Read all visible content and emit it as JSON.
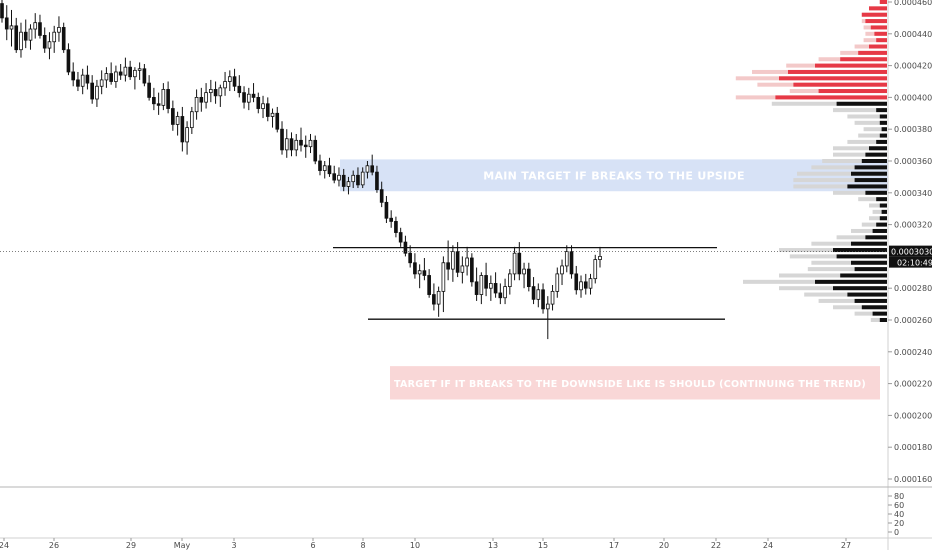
{
  "chart_data": {
    "type": "candlestick",
    "title": "",
    "price_axis": {
      "ticks": [
        "0.0004600",
        "0.0004400",
        "0.0004200",
        "0.0004000",
        "0.0003800",
        "0.0003600",
        "0.0003400",
        "0.0003200",
        "0.0002800",
        "0.0002600",
        "0.0002400",
        "0.0002200",
        "0.0002000",
        "0.0001800",
        "0.0001600"
      ],
      "range": [
        0.000152,
        0.000462
      ],
      "current_price": "0.0003030",
      "countdown": "02:10:49"
    },
    "time_axis": {
      "labels": [
        "24",
        "26",
        "29",
        "May",
        "3",
        "6",
        "8",
        "10",
        "13",
        "15",
        "17",
        "20",
        "22",
        "24",
        "27"
      ]
    },
    "indicator_axis": {
      "ticks": [
        "80",
        "60",
        "40",
        "20",
        "0"
      ]
    },
    "zones": [
      {
        "label": "MAIN TARGET IF BREAKS TO THE UPSIDE",
        "from_price": 0.000341,
        "to_price": 0.000361,
        "color": "#c9d8f3"
      },
      {
        "label": "TARGET IF IT BREAKS TO THE DOWNSIDE LIKE IS SHOULD (CONTINUING THE TREND)",
        "from_price": 0.00021,
        "to_price": 0.000231,
        "color": "#f7c9c9"
      }
    ],
    "levels": [
      {
        "name": "resistance",
        "price": 0.0003055
      },
      {
        "name": "support",
        "price": 0.0002605
      }
    ],
    "candles": [
      [
        0.000459,
        0.000466,
        0.000447,
        0.00045
      ],
      [
        0.00045,
        0.000458,
        0.000436,
        0.000443
      ],
      [
        0.000443,
        0.000455,
        0.000432,
        0.000445
      ],
      [
        0.000445,
        0.00045,
        0.000428,
        0.00043
      ],
      [
        0.00043,
        0.000447,
        0.000425,
        0.000441
      ],
      [
        0.000441,
        0.000449,
        0.000431,
        0.000436
      ],
      [
        0.000436,
        0.000446,
        0.00043,
        0.000443
      ],
      [
        0.000443,
        0.000453,
        0.000437,
        0.000447
      ],
      [
        0.000447,
        0.000452,
        0.000437,
        0.000439
      ],
      [
        0.000439,
        0.000444,
        0.000428,
        0.000431
      ],
      [
        0.000431,
        0.000441,
        0.000424,
        0.000435
      ],
      [
        0.000435,
        0.000445,
        0.000428,
        0.000441
      ],
      [
        0.000441,
        0.000451,
        0.000435,
        0.000444
      ],
      [
        0.000444,
        0.000447,
        0.000428,
        0.00043
      ],
      [
        0.00043,
        0.000434,
        0.000414,
        0.000416
      ],
      [
        0.000416,
        0.000422,
        0.000407,
        0.000411
      ],
      [
        0.000411,
        0.000416,
        0.000404,
        0.000407
      ],
      [
        0.000407,
        0.000418,
        0.000402,
        0.000414
      ],
      [
        0.000414,
        0.00042,
        0.000405,
        0.000409
      ],
      [
        0.000409,
        0.000414,
        0.000396,
        0.000399
      ],
      [
        0.000399,
        0.000411,
        0.000394,
        0.000407
      ],
      [
        0.000407,
        0.000417,
        0.000402,
        0.000411
      ],
      [
        0.000411,
        0.000419,
        0.000406,
        0.000415
      ],
      [
        0.000415,
        0.000422,
        0.000408,
        0.00041
      ],
      [
        0.00041,
        0.00042,
        0.000406,
        0.000416
      ],
      [
        0.000416,
        0.000421,
        0.000411,
        0.000414
      ],
      [
        0.000414,
        0.000425,
        0.00041,
        0.000419
      ],
      [
        0.000419,
        0.000423,
        0.000411,
        0.000413
      ],
      [
        0.000413,
        0.000419,
        0.000405,
        0.000417
      ],
      [
        0.000417,
        0.000422,
        0.000411,
        0.000418
      ],
      [
        0.000418,
        0.000421,
        0.000407,
        0.000409
      ],
      [
        0.000409,
        0.000414,
        0.000398,
        0.0004
      ],
      [
        0.0004,
        0.000406,
        0.000392,
        0.000396
      ],
      [
        0.000396,
        0.000403,
        0.000389,
        0.000395
      ],
      [
        0.000395,
        0.000409,
        0.000392,
        0.000405
      ],
      [
        0.000405,
        0.00041,
        0.00039,
        0.000393
      ],
      [
        0.000393,
        0.000398,
        0.000379,
        0.000383
      ],
      [
        0.000383,
        0.000391,
        0.000376,
        0.000388
      ],
      [
        0.000388,
        0.000394,
        0.000366,
        0.000372
      ],
      [
        0.000372,
        0.000385,
        0.000364,
        0.000381
      ],
      [
        0.000381,
        0.000394,
        0.000377,
        0.000391
      ],
      [
        0.000391,
        0.000405,
        0.000386,
        0.0004
      ],
      [
        0.0004,
        0.000406,
        0.000391,
        0.000397
      ],
      [
        0.000397,
        0.000409,
        0.000393,
        0.000403
      ],
      [
        0.000403,
        0.000411,
        0.000397,
        0.000405
      ],
      [
        0.000405,
        0.00041,
        0.000396,
        0.000401
      ],
      [
        0.000401,
        0.000408,
        0.000394,
        0.000406
      ],
      [
        0.000406,
        0.000416,
        0.000401,
        0.00041
      ],
      [
        0.00041,
        0.000417,
        0.000404,
        0.000413
      ],
      [
        0.000413,
        0.000418,
        0.000404,
        0.000407
      ],
      [
        0.000407,
        0.000414,
        0.0004,
        0.000403
      ],
      [
        0.000403,
        0.000407,
        0.000393,
        0.000397
      ],
      [
        0.000397,
        0.000406,
        0.000392,
        0.000402
      ],
      [
        0.000402,
        0.000409,
        0.000397,
        0.0004
      ],
      [
        0.0004,
        0.000403,
        0.00039,
        0.000393
      ],
      [
        0.000393,
        0.000401,
        0.000387,
        0.000396
      ],
      [
        0.000396,
        0.0004,
        0.000385,
        0.000388
      ],
      [
        0.000388,
        0.000393,
        0.000381,
        0.00039
      ],
      [
        0.00039,
        0.000394,
        0.000378,
        0.00038
      ],
      [
        0.00038,
        0.000385,
        0.000364,
        0.000367
      ],
      [
        0.000367,
        0.00038,
        0.000362,
        0.000374
      ],
      [
        0.000374,
        0.000378,
        0.000363,
        0.000367
      ],
      [
        0.000367,
        0.000377,
        0.000363,
        0.000373
      ],
      [
        0.000373,
        0.000381,
        0.000366,
        0.00037
      ],
      [
        0.00037,
        0.000376,
        0.000362,
        0.000369
      ],
      [
        0.000369,
        0.000377,
        0.000365,
        0.000373
      ],
      [
        0.000373,
        0.000376,
        0.000358,
        0.00036
      ],
      [
        0.00036,
        0.000364,
        0.000351,
        0.000354
      ],
      [
        0.000354,
        0.00036,
        0.000349,
        0.000357
      ],
      [
        0.000357,
        0.000362,
        0.00035,
        0.000352
      ],
      [
        0.000352,
        0.000357,
        0.000346,
        0.000348
      ],
      [
        0.000348,
        0.000356,
        0.000344,
        0.000351
      ],
      [
        0.000351,
        0.000355,
        0.000341,
        0.000344
      ],
      [
        0.000344,
        0.00035,
        0.000339,
        0.000347
      ],
      [
        0.000347,
        0.000354,
        0.000343,
        0.000351
      ],
      [
        0.000351,
        0.000356,
        0.000343,
        0.000345
      ],
      [
        0.000345,
        0.000356,
        0.000343,
        0.000353
      ],
      [
        0.000353,
        0.00036,
        0.000349,
        0.000357
      ],
      [
        0.000357,
        0.000364,
        0.000351,
        0.000353
      ],
      [
        0.000353,
        0.000357,
        0.00034,
        0.000342
      ],
      [
        0.000342,
        0.000347,
        0.000331,
        0.000334
      ],
      [
        0.000334,
        0.000338,
        0.000321,
        0.000324
      ],
      [
        0.000324,
        0.000329,
        0.000318,
        0.000322
      ],
      [
        0.000322,
        0.000325,
        0.000312,
        0.000315
      ],
      [
        0.000315,
        0.000318,
        0.000306,
        0.000309
      ],
      [
        0.000309,
        0.000313,
        0.0003,
        0.000302
      ],
      [
        0.000302,
        0.000307,
        0.000293,
        0.000296
      ],
      [
        0.000296,
        0.000302,
        0.000286,
        0.000289
      ],
      [
        0.000289,
        0.000295,
        0.00028,
        0.000291
      ],
      [
        0.000291,
        0.000299,
        0.000285,
        0.000288
      ],
      [
        0.000288,
        0.000292,
        0.000274,
        0.000276
      ],
      [
        0.000276,
        0.000283,
        0.000266,
        0.00027
      ],
      [
        0.00027,
        0.000281,
        0.000262,
        0.000278
      ],
      [
        0.000278,
        0.0003,
        0.000265,
        0.000296
      ],
      [
        0.000296,
        0.00031,
        0.000285,
        0.000292
      ],
      [
        0.000292,
        0.000307,
        0.000284,
        0.000303
      ],
      [
        0.000303,
        0.000309,
        0.000287,
        0.00029
      ],
      [
        0.00029,
        0.0003,
        0.000283,
        0.000294
      ],
      [
        0.000294,
        0.000306,
        0.000288,
        0.000299
      ],
      [
        0.000299,
        0.000302,
        0.000281,
        0.000284
      ],
      [
        0.000284,
        0.000293,
        0.000272,
        0.000276
      ],
      [
        0.000276,
        0.00029,
        0.00027,
        0.000288
      ],
      [
        0.000288,
        0.000296,
        0.000275,
        0.00028
      ],
      [
        0.00028,
        0.000288,
        0.000272,
        0.000283
      ],
      [
        0.000283,
        0.00029,
        0.000274,
        0.000277
      ],
      [
        0.000277,
        0.000283,
        0.00027,
        0.000274
      ],
      [
        0.000274,
        0.000286,
        0.00027,
        0.000281
      ],
      [
        0.000281,
        0.000292,
        0.000276,
        0.000289
      ],
      [
        0.000289,
        0.000306,
        0.000285,
        0.000302
      ],
      [
        0.000302,
        0.000309,
        0.000285,
        0.000289
      ],
      [
        0.000289,
        0.000296,
        0.00028,
        0.000292
      ],
      [
        0.000292,
        0.000296,
        0.000278,
        0.000281
      ],
      [
        0.000281,
        0.000287,
        0.00027,
        0.000273
      ],
      [
        0.000273,
        0.000283,
        0.000268,
        0.000279
      ],
      [
        0.000279,
        0.000283,
        0.000264,
        0.000267
      ],
      [
        0.000267,
        0.000275,
        0.000248,
        0.00027
      ],
      [
        0.00027,
        0.000282,
        0.000266,
        0.000278
      ],
      [
        0.000278,
        0.000293,
        0.000274,
        0.000289
      ],
      [
        0.000289,
        0.000298,
        0.000282,
        0.000294
      ],
      [
        0.000294,
        0.000307,
        0.00029,
        0.000303
      ],
      [
        0.000303,
        0.000307,
        0.000286,
        0.000289
      ],
      [
        0.000289,
        0.000294,
        0.000276,
        0.000279
      ],
      [
        0.000279,
        0.000288,
        0.000274,
        0.000284
      ],
      [
        0.000284,
        0.000289,
        0.000276,
        0.00028
      ],
      [
        0.00028,
        0.000289,
        0.000276,
        0.000286
      ],
      [
        0.000286,
        0.000301,
        0.000283,
        0.000298
      ],
      [
        0.000298,
        0.000306,
        0.000293,
        0.0003
      ]
    ],
    "volume_profile": {
      "bins": [
        {
          "price": 0.00046,
          "up": 0.04,
          "down": 0.0
        },
        {
          "price": 0.000456,
          "up": 0.1,
          "down": 0.0
        },
        {
          "price": 0.000452,
          "up": 0.14,
          "down": 0.0
        },
        {
          "price": 0.000448,
          "up": 0.12,
          "down": 0.02
        },
        {
          "price": 0.000444,
          "up": 0.09,
          "down": 0.04
        },
        {
          "price": 0.00044,
          "up": 0.07,
          "down": 0.05
        },
        {
          "price": 0.000436,
          "up": 0.06,
          "down": 0.07
        },
        {
          "price": 0.000432,
          "up": 0.1,
          "down": 0.08
        },
        {
          "price": 0.000428,
          "up": 0.16,
          "down": 0.1
        },
        {
          "price": 0.000424,
          "up": 0.26,
          "down": 0.12
        },
        {
          "price": 0.00042,
          "up": 0.4,
          "down": 0.16
        },
        {
          "price": 0.000416,
          "up": 0.55,
          "down": 0.2
        },
        {
          "price": 0.000412,
          "up": 0.6,
          "down": 0.24
        },
        {
          "price": 0.000408,
          "up": 0.52,
          "down": 0.2
        },
        {
          "price": 0.000404,
          "up": 0.38,
          "down": 0.16
        },
        {
          "price": 0.0004,
          "up": 0.62,
          "down": 0.22
        },
        {
          "price": 0.000396,
          "up": 0.28,
          "down": 0.36
        },
        {
          "price": 0.000392,
          "up": 0.06,
          "down": 0.24
        },
        {
          "price": 0.000388,
          "up": 0.04,
          "down": 0.18
        },
        {
          "price": 0.000384,
          "up": 0.04,
          "down": 0.14
        },
        {
          "price": 0.00038,
          "up": 0.03,
          "down": 0.1
        },
        {
          "price": 0.000376,
          "up": 0.04,
          "down": 0.12
        },
        {
          "price": 0.000372,
          "up": 0.06,
          "down": 0.16
        },
        {
          "price": 0.000368,
          "up": 0.1,
          "down": 0.2
        },
        {
          "price": 0.000364,
          "up": 0.12,
          "down": 0.18
        },
        {
          "price": 0.00036,
          "up": 0.14,
          "down": 0.22
        },
        {
          "price": 0.000356,
          "up": 0.18,
          "down": 0.24
        },
        {
          "price": 0.000352,
          "up": 0.2,
          "down": 0.3
        },
        {
          "price": 0.000348,
          "up": 0.18,
          "down": 0.34
        },
        {
          "price": 0.000344,
          "up": 0.22,
          "down": 0.3
        },
        {
          "price": 0.00034,
          "up": 0.12,
          "down": 0.18
        },
        {
          "price": 0.000336,
          "up": 0.06,
          "down": 0.1
        },
        {
          "price": 0.000332,
          "up": 0.04,
          "down": 0.06
        },
        {
          "price": 0.000328,
          "up": 0.03,
          "down": 0.05
        },
        {
          "price": 0.000324,
          "up": 0.04,
          "down": 0.06
        },
        {
          "price": 0.00032,
          "up": 0.06,
          "down": 0.08
        },
        {
          "price": 0.000316,
          "up": 0.08,
          "down": 0.12
        },
        {
          "price": 0.000312,
          "up": 0.12,
          "down": 0.16
        },
        {
          "price": 0.000308,
          "up": 0.2,
          "down": 0.22
        },
        {
          "price": 0.000304,
          "up": 0.3,
          "down": 0.3
        },
        {
          "price": 0.0003,
          "up": 0.28,
          "down": 0.26
        },
        {
          "price": 0.000296,
          "up": 0.2,
          "down": 0.22
        },
        {
          "price": 0.000292,
          "up": 0.18,
          "down": 0.26
        },
        {
          "price": 0.000288,
          "up": 0.26,
          "down": 0.34
        },
        {
          "price": 0.000284,
          "up": 0.4,
          "down": 0.4
        },
        {
          "price": 0.00028,
          "up": 0.3,
          "down": 0.3
        },
        {
          "price": 0.000276,
          "up": 0.22,
          "down": 0.24
        },
        {
          "price": 0.000272,
          "up": 0.18,
          "down": 0.2
        },
        {
          "price": 0.000268,
          "up": 0.14,
          "down": 0.16
        },
        {
          "price": 0.000264,
          "up": 0.08,
          "down": 0.1
        },
        {
          "price": 0.00026,
          "up": 0.04,
          "down": 0.05
        }
      ]
    }
  }
}
